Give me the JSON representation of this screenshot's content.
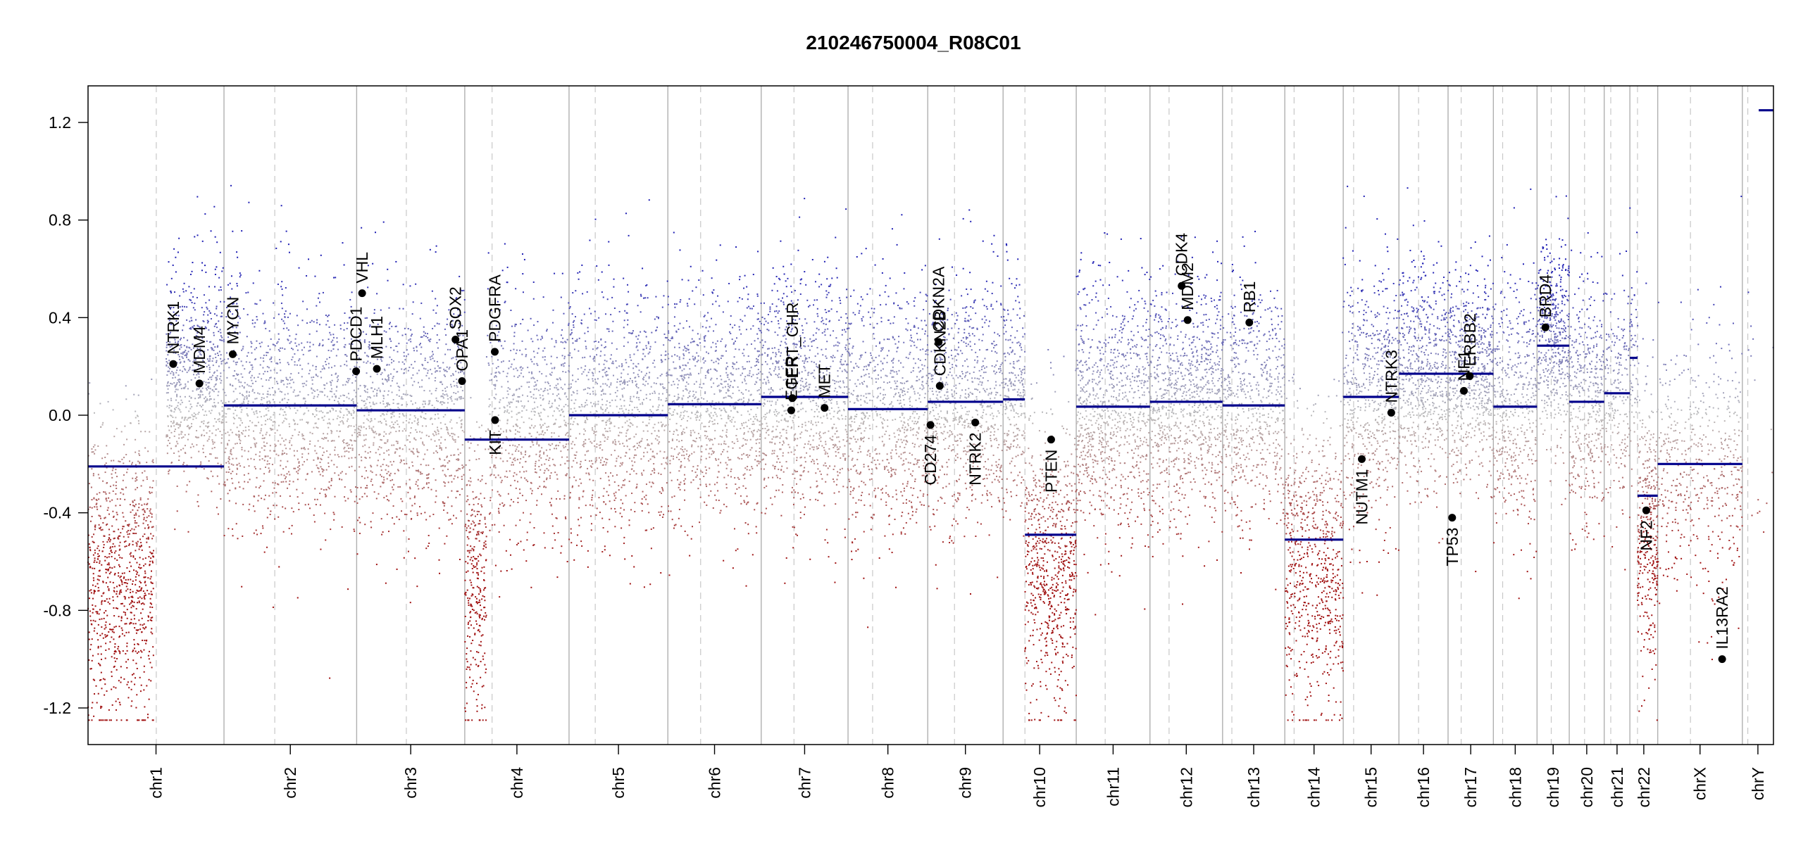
{
  "chart_data": {
    "type": "scatter",
    "title": "210246750004_R08C01",
    "xlabel": "",
    "ylabel": "",
    "ylim": [
      -1.35,
      1.35
    ],
    "yticks": [
      1.2,
      0.8,
      0.4,
      0.0,
      -0.4,
      -0.8,
      -1.2
    ],
    "ytick_labels": [
      "1.2",
      "0.8",
      "0.4",
      "0.0",
      "-0.4",
      "-0.8",
      "-1.2"
    ],
    "grid": false,
    "x_units": "Mb (approx. cumulative genome position)",
    "colors": {
      "gain": "#1f1fb4",
      "loss": "#a01010",
      "neutral": "#bbbbbb",
      "segment": "#00008b",
      "boundary": "#b0b0b0",
      "centromere": "#c8c8c8",
      "gene_point": "#000000"
    },
    "chromosomes": [
      {
        "name": "chr1",
        "length": 249,
        "centromere": 125
      },
      {
        "name": "chr2",
        "length": 243,
        "centromere": 93
      },
      {
        "name": "chr3",
        "length": 198,
        "centromere": 91
      },
      {
        "name": "chr4",
        "length": 191,
        "centromere": 50
      },
      {
        "name": "chr5",
        "length": 181,
        "centromere": 48
      },
      {
        "name": "chr6",
        "length": 171,
        "centromere": 60
      },
      {
        "name": "chr7",
        "length": 159,
        "centromere": 60
      },
      {
        "name": "chr8",
        "length": 146,
        "centromere": 45
      },
      {
        "name": "chr9",
        "length": 138,
        "centromere": 49
      },
      {
        "name": "chr10",
        "length": 134,
        "centromere": 40
      },
      {
        "name": "chr11",
        "length": 135,
        "centromere": 53
      },
      {
        "name": "chr12",
        "length": 133,
        "centromere": 35
      },
      {
        "name": "chr13",
        "length": 114,
        "centromere": 17
      },
      {
        "name": "chr14",
        "length": 107,
        "centromere": 17
      },
      {
        "name": "chr15",
        "length": 102,
        "centromere": 19
      },
      {
        "name": "chr16",
        "length": 90,
        "centromere": 36
      },
      {
        "name": "chr17",
        "length": 83,
        "centromere": 24
      },
      {
        "name": "chr18",
        "length": 80,
        "centromere": 17
      },
      {
        "name": "chr19",
        "length": 59,
        "centromere": 26
      },
      {
        "name": "chr20",
        "length": 64,
        "centromere": 28
      },
      {
        "name": "chr21",
        "length": 47,
        "centromere": 12
      },
      {
        "name": "chr22",
        "length": 51,
        "centromere": 14
      },
      {
        "name": "chrX",
        "length": 155,
        "centromere": 60
      },
      {
        "name": "chrY",
        "length": 57,
        "centromere": 10
      }
    ],
    "segments": [
      {
        "chr": "chr1",
        "start": 0,
        "end": 249,
        "value": -0.21
      },
      {
        "chr": "chr2",
        "start": 0,
        "end": 243,
        "value": 0.04
      },
      {
        "chr": "chr3",
        "start": 0,
        "end": 198,
        "value": 0.02
      },
      {
        "chr": "chr4",
        "start": 0,
        "end": 191,
        "value": -0.1
      },
      {
        "chr": "chr5",
        "start": 0,
        "end": 181,
        "value": 0.0
      },
      {
        "chr": "chr6",
        "start": 0,
        "end": 171,
        "value": 0.045
      },
      {
        "chr": "chr7",
        "start": 0,
        "end": 159,
        "value": 0.075
      },
      {
        "chr": "chr8",
        "start": 0,
        "end": 146,
        "value": 0.025
      },
      {
        "chr": "chr9",
        "start": 0,
        "end": 138,
        "value": 0.055
      },
      {
        "chr": "chr10",
        "start": 0,
        "end": 40,
        "value": 0.065
      },
      {
        "chr": "chr10",
        "start": 40,
        "end": 134,
        "value": -0.49
      },
      {
        "chr": "chr11",
        "start": 0,
        "end": 135,
        "value": 0.035
      },
      {
        "chr": "chr12",
        "start": 0,
        "end": 133,
        "value": 0.055
      },
      {
        "chr": "chr13",
        "start": 0,
        "end": 114,
        "value": 0.04
      },
      {
        "chr": "chr14",
        "start": 0,
        "end": 107,
        "value": -0.51
      },
      {
        "chr": "chr15",
        "start": 0,
        "end": 102,
        "value": 0.075
      },
      {
        "chr": "chr16",
        "start": 0,
        "end": 90,
        "value": 0.17
      },
      {
        "chr": "chr17",
        "start": 0,
        "end": 83,
        "value": 0.17
      },
      {
        "chr": "chr18",
        "start": 0,
        "end": 80,
        "value": 0.035
      },
      {
        "chr": "chr19",
        "start": 0,
        "end": 59,
        "value": 0.285
      },
      {
        "chr": "chr20",
        "start": 0,
        "end": 64,
        "value": 0.055
      },
      {
        "chr": "chr21",
        "start": 0,
        "end": 47,
        "value": 0.09
      },
      {
        "chr": "chr22",
        "start": 0,
        "end": 14,
        "value": 0.235
      },
      {
        "chr": "chr22",
        "start": 14,
        "end": 51,
        "value": -0.33
      },
      {
        "chr": "chrX",
        "start": 0,
        "end": 155,
        "value": -0.2
      },
      {
        "chr": "chrY",
        "start": 30,
        "end": 57,
        "value": 1.25
      }
    ],
    "density": [
      {
        "chr": "chr1",
        "start": 0,
        "end": 120,
        "mean": -0.65,
        "sd": 0.3,
        "count": 900
      },
      {
        "chr": "chr1",
        "start": 143,
        "end": 249,
        "mean": 0.15,
        "sd": 0.22,
        "count": 700
      },
      {
        "chr": "chr2",
        "start": 0,
        "end": 243,
        "mean": 0.04,
        "sd": 0.25,
        "count": 1200
      },
      {
        "chr": "chr3",
        "start": 0,
        "end": 198,
        "mean": 0.02,
        "sd": 0.25,
        "count": 1000
      },
      {
        "chr": "chr4",
        "start": 0,
        "end": 40,
        "mean": -0.7,
        "sd": 0.3,
        "count": 300
      },
      {
        "chr": "chr4",
        "start": 40,
        "end": 191,
        "mean": 0.0,
        "sd": 0.25,
        "count": 700
      },
      {
        "chr": "chr5",
        "start": 0,
        "end": 181,
        "mean": 0.0,
        "sd": 0.25,
        "count": 900
      },
      {
        "chr": "chr6",
        "start": 0,
        "end": 171,
        "mean": 0.045,
        "sd": 0.25,
        "count": 900
      },
      {
        "chr": "chr7",
        "start": 0,
        "end": 159,
        "mean": 0.075,
        "sd": 0.25,
        "count": 900
      },
      {
        "chr": "chr8",
        "start": 0,
        "end": 146,
        "mean": 0.025,
        "sd": 0.25,
        "count": 800
      },
      {
        "chr": "chr9",
        "start": 0,
        "end": 138,
        "mean": 0.06,
        "sd": 0.25,
        "count": 800
      },
      {
        "chr": "chr10",
        "start": 0,
        "end": 40,
        "mean": 0.07,
        "sd": 0.22,
        "count": 250
      },
      {
        "chr": "chr10",
        "start": 40,
        "end": 134,
        "mean": -0.6,
        "sd": 0.3,
        "count": 700
      },
      {
        "chr": "chr11",
        "start": 0,
        "end": 135,
        "mean": 0.04,
        "sd": 0.25,
        "count": 900
      },
      {
        "chr": "chr12",
        "start": 0,
        "end": 133,
        "mean": 0.06,
        "sd": 0.25,
        "count": 900
      },
      {
        "chr": "chr13",
        "start": 0,
        "end": 114,
        "mean": 0.04,
        "sd": 0.25,
        "count": 600
      },
      {
        "chr": "chr14",
        "start": 0,
        "end": 107,
        "mean": -0.6,
        "sd": 0.3,
        "count": 700
      },
      {
        "chr": "chr15",
        "start": 0,
        "end": 102,
        "mean": 0.08,
        "sd": 0.25,
        "count": 600
      },
      {
        "chr": "chr16",
        "start": 0,
        "end": 90,
        "mean": 0.17,
        "sd": 0.22,
        "count": 600
      },
      {
        "chr": "chr17",
        "start": 0,
        "end": 83,
        "mean": 0.17,
        "sd": 0.22,
        "count": 600
      },
      {
        "chr": "chr18",
        "start": 0,
        "end": 80,
        "mean": 0.04,
        "sd": 0.25,
        "count": 450
      },
      {
        "chr": "chr19",
        "start": 0,
        "end": 59,
        "mean": 0.3,
        "sd": 0.2,
        "count": 450
      },
      {
        "chr": "chr20",
        "start": 0,
        "end": 64,
        "mean": 0.06,
        "sd": 0.25,
        "count": 400
      },
      {
        "chr": "chr21",
        "start": 0,
        "end": 47,
        "mean": 0.09,
        "sd": 0.22,
        "count": 200
      },
      {
        "chr": "chr22",
        "start": 0,
        "end": 14,
        "mean": 0.23,
        "sd": 0.2,
        "count": 60
      },
      {
        "chr": "chr22",
        "start": 14,
        "end": 51,
        "mean": -0.45,
        "sd": 0.3,
        "count": 350
      },
      {
        "chr": "chrX",
        "start": 0,
        "end": 155,
        "mean": -0.2,
        "sd": 0.25,
        "count": 500
      },
      {
        "chr": "chrY",
        "start": 0,
        "end": 57,
        "mean": 0.0,
        "sd": 0.4,
        "count": 15
      }
    ],
    "genes": [
      {
        "name": "NTRK1",
        "chr": "chr1",
        "pos": 156,
        "value": 0.21,
        "label_side": "up"
      },
      {
        "name": "MDM4",
        "chr": "chr1",
        "pos": 204,
        "value": 0.13,
        "label_side": "up"
      },
      {
        "name": "MYCN",
        "chr": "chr2",
        "pos": 16,
        "value": 0.25,
        "label_side": "up"
      },
      {
        "name": "PDCD1",
        "chr": "chr2",
        "pos": 242,
        "value": 0.18,
        "label_side": "up"
      },
      {
        "name": "VHL",
        "chr": "chr3",
        "pos": 10,
        "value": 0.5,
        "label_side": "up"
      },
      {
        "name": "MLH1",
        "chr": "chr3",
        "pos": 37,
        "value": 0.19,
        "label_side": "up"
      },
      {
        "name": "SOX2",
        "chr": "chr3",
        "pos": 181,
        "value": 0.31,
        "label_side": "up"
      },
      {
        "name": "OPA1",
        "chr": "chr3",
        "pos": 193,
        "value": 0.14,
        "label_side": "up"
      },
      {
        "name": "PDGFRA",
        "chr": "chr4",
        "pos": 55,
        "value": 0.26,
        "label_side": "up"
      },
      {
        "name": "KIT",
        "chr": "chr4",
        "pos": 55.5,
        "value": -0.02,
        "label_side": "down"
      },
      {
        "name": "EGFR",
        "chr": "chr7",
        "pos": 55,
        "value": 0.02,
        "label_side": "up"
      },
      {
        "name": "TERT_CHR",
        "chr": "chr7",
        "pos": 57,
        "value": 0.07,
        "label_side": "up"
      },
      {
        "name": "MET",
        "chr": "chr7",
        "pos": 116,
        "value": 0.03,
        "label_side": "up"
      },
      {
        "name": "CD274",
        "chr": "chr9",
        "pos": 5,
        "value": -0.04,
        "label_side": "down"
      },
      {
        "name": "CDKN2A",
        "chr": "chr9",
        "pos": 20,
        "value": 0.3,
        "label_side": "up"
      },
      {
        "name": "CDKN2B",
        "chr": "chr9",
        "pos": 22,
        "value": 0.12,
        "label_side": "up"
      },
      {
        "name": "NTRK2",
        "chr": "chr9",
        "pos": 87,
        "value": -0.03,
        "label_side": "down"
      },
      {
        "name": "PTEN",
        "chr": "chr10",
        "pos": 88,
        "value": -0.1,
        "label_side": "down"
      },
      {
        "name": "CDK4",
        "chr": "chr12",
        "pos": 58,
        "value": 0.53,
        "label_side": "up"
      },
      {
        "name": "MDM2",
        "chr": "chr12",
        "pos": 69,
        "value": 0.39,
        "label_side": "up"
      },
      {
        "name": "RB1",
        "chr": "chr13",
        "pos": 49,
        "value": 0.38,
        "label_side": "up"
      },
      {
        "name": "NUTM1",
        "chr": "chr15",
        "pos": 34,
        "value": -0.18,
        "label_side": "down"
      },
      {
        "name": "NTRK3",
        "chr": "chr15",
        "pos": 88,
        "value": 0.01,
        "label_side": "up"
      },
      {
        "name": "TP53",
        "chr": "chr17",
        "pos": 7.5,
        "value": -0.42,
        "label_side": "down"
      },
      {
        "name": "NF1",
        "chr": "chr17",
        "pos": 29,
        "value": 0.1,
        "label_side": "up"
      },
      {
        "name": "ERBB2",
        "chr": "chr17",
        "pos": 39.7,
        "value": 0.16,
        "label_side": "up"
      },
      {
        "name": "BRD4",
        "chr": "chr19",
        "pos": 15.3,
        "value": 0.36,
        "label_side": "up"
      },
      {
        "name": "NF2",
        "chr": "chr22",
        "pos": 30,
        "value": -0.39,
        "label_side": "down"
      },
      {
        "name": "IL13RA2",
        "chrX": true,
        "chr": "chrX",
        "pos": 118,
        "value": -1.0,
        "label_side": "up"
      }
    ]
  }
}
